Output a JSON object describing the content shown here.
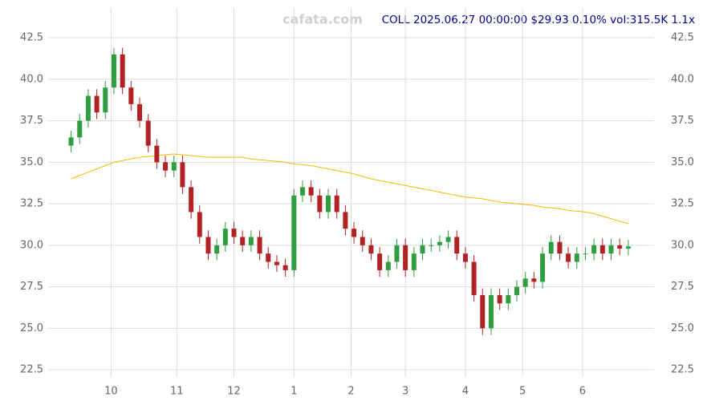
{
  "chart_data": {
    "type": "candlestick",
    "title": "COLL 2025.06.27 00:00:00 $29.93 0.10% vol:315.5K 1.1x",
    "watermark": "cafata.com",
    "x": [
      0,
      3,
      6,
      9,
      12,
      15,
      18,
      21,
      24,
      27,
      30,
      33,
      36,
      39,
      42,
      45,
      48,
      51,
      54,
      57,
      60,
      63,
      66,
      69,
      72,
      75,
      78,
      81,
      84,
      87,
      90,
      93,
      96,
      99,
      102,
      105,
      108,
      111,
      114,
      117,
      120,
      123,
      126,
      129,
      132,
      135,
      138,
      141,
      144,
      147,
      150,
      153,
      156,
      159,
      162,
      165,
      168,
      171,
      174,
      177,
      180,
      183,
      186,
      189,
      192,
      195
    ],
    "open": [
      36,
      36.5,
      37.5,
      39,
      38,
      39.5,
      41.5,
      39.5,
      38.5,
      37.5,
      36,
      35,
      34.5,
      35,
      33.5,
      32,
      30.5,
      29.5,
      30,
      31,
      30.5,
      30,
      30.5,
      29.5,
      29,
      28.8,
      28.5,
      33,
      33.5,
      33,
      32,
      33,
      32,
      31,
      30.5,
      30,
      29.5,
      28.5,
      29,
      30,
      28.5,
      29.5,
      30,
      30,
      30.2,
      30.5,
      29.5,
      29,
      27,
      25,
      27,
      26.5,
      27,
      27.5,
      28,
      27.8,
      29.5,
      30.2,
      29.5,
      29,
      29.5,
      29.5,
      30,
      29.5,
      30,
      29.8
    ],
    "high": [
      36.9,
      37.9,
      39.4,
      39.4,
      39.9,
      41.9,
      41.9,
      39.9,
      38.9,
      37.9,
      36.4,
      35.4,
      35.4,
      35.4,
      33.9,
      32.4,
      30.9,
      30.4,
      31.4,
      31.4,
      30.9,
      30.9,
      30.9,
      29.9,
      29.4,
      29.2,
      33.4,
      33.9,
      33.9,
      33.4,
      33.4,
      33.4,
      32.4,
      31.4,
      30.9,
      30.4,
      29.9,
      29.4,
      30.4,
      30.4,
      29.9,
      30.4,
      30.4,
      30.6,
      30.9,
      30.9,
      29.9,
      29.4,
      27.4,
      27.4,
      27.4,
      27.4,
      27.9,
      28.4,
      28.4,
      29.9,
      30.6,
      30.6,
      29.9,
      29.9,
      29.9,
      30.4,
      30.4,
      30.4,
      30.4,
      30.33
    ],
    "low": [
      35.6,
      36.1,
      37.1,
      37.6,
      37.6,
      39.1,
      39.1,
      38.1,
      37.1,
      35.6,
      34.6,
      34.1,
      34.1,
      33.1,
      31.6,
      30.1,
      29.1,
      29.1,
      29.6,
      30.1,
      29.6,
      29.6,
      29.1,
      28.6,
      28.4,
      28.1,
      28.1,
      32.6,
      32.6,
      31.6,
      31.6,
      31.6,
      30.6,
      30.1,
      29.6,
      29.1,
      28.1,
      28.1,
      28.6,
      28.1,
      28.1,
      29.1,
      29.6,
      29.6,
      29.8,
      29.1,
      28.6,
      26.6,
      24.6,
      24.6,
      26.1,
      26.1,
      26.6,
      27.1,
      27.4,
      27.4,
      29.1,
      29.1,
      28.6,
      28.6,
      29.1,
      29.1,
      29.1,
      29.1,
      29.4,
      29.4
    ],
    "close": [
      36.5,
      37.5,
      39,
      38,
      39.5,
      41.5,
      39.5,
      38.5,
      37.5,
      36,
      35,
      34.5,
      35,
      33.5,
      32,
      30.5,
      29.5,
      30,
      31,
      30.5,
      30,
      30.5,
      29.5,
      29,
      28.8,
      28.5,
      33,
      33.5,
      33,
      32,
      33,
      32,
      31,
      30.5,
      30,
      29.5,
      28.5,
      29,
      30,
      28.5,
      29.5,
      30,
      30,
      30.2,
      30.5,
      29.5,
      29,
      27,
      25,
      27,
      26.5,
      27,
      27.5,
      28,
      27.8,
      29.5,
      30.2,
      29.5,
      29,
      29.5,
      29.5,
      30,
      29.5,
      30,
      29.8,
      29.93
    ],
    "ma": {
      "color": "#f5b800",
      "values": [
        34,
        34.2,
        34.4,
        34.6,
        34.8,
        35,
        35.1,
        35.2,
        35.3,
        35.35,
        35.4,
        35.45,
        35.5,
        35.45,
        35.4,
        35.35,
        35.3,
        35.3,
        35.3,
        35.3,
        35.3,
        35.2,
        35.15,
        35.1,
        35.05,
        35,
        34.9,
        34.85,
        34.8,
        34.7,
        34.6,
        34.5,
        34.4,
        34.3,
        34.15,
        34,
        33.9,
        33.8,
        33.7,
        33.6,
        33.5,
        33.4,
        33.3,
        33.2,
        33.1,
        33,
        32.9,
        32.85,
        32.8,
        32.7,
        32.6,
        32.55,
        32.5,
        32.45,
        32.4,
        32.3,
        32.25,
        32.2,
        32.1,
        32.05,
        32,
        31.9,
        31.75,
        31.6,
        31.45,
        31.3
      ]
    },
    "up_color": "#2e9e3e",
    "down_color": "#b22222",
    "xlim": [
      -1,
      197
    ],
    "ylim": [
      22.07,
      44.29
    ],
    "xticks": [
      {
        "value": 14,
        "label": "10"
      },
      {
        "value": 37,
        "label": "11"
      },
      {
        "value": 57,
        "label": "12"
      },
      {
        "value": 78,
        "label": "1"
      },
      {
        "value": 98,
        "label": "2"
      },
      {
        "value": 117,
        "label": "3"
      },
      {
        "value": 138,
        "label": "4"
      },
      {
        "value": 158,
        "label": "5"
      },
      {
        "value": 179,
        "label": "6"
      }
    ],
    "yticks": [
      22.5,
      {
        "value": 25,
        "label": "25.0"
      },
      27.5,
      {
        "value": 30,
        "label": "30.0"
      },
      32.5,
      {
        "value": 35,
        "label": "35.0"
      },
      37.5,
      {
        "value": 40,
        "label": "40.0"
      },
      42.5
    ],
    "grid": true
  }
}
